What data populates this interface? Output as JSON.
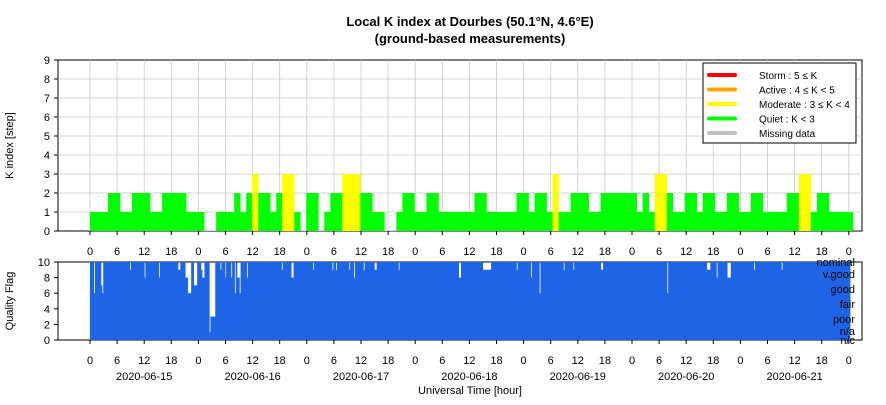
{
  "chart_data": {
    "type": "bar",
    "title": "Local K index at Dourbes (50.1°N, 4.6°E)",
    "subtitle": "(ground-based measurements)",
    "xlabel": "Universal Time [hour]",
    "colors": {
      "storm": "#ff0000",
      "active": "#ffa500",
      "moderate": "#ffff00",
      "quiet": "#00ff00",
      "missing": "#c0c0c0",
      "quality": "#1e64e6",
      "grid": "#c8c8c8"
    },
    "top_panel": {
      "ylabel": "K index [step]",
      "ylim": [
        0,
        9
      ],
      "yticks": [
        "0",
        "1",
        "2",
        "3",
        "4",
        "5",
        "6",
        "7",
        "8",
        "9"
      ],
      "k_values": [
        1,
        1,
        1,
        2,
        2,
        1,
        1,
        2,
        2,
        2,
        1,
        1,
        2,
        2,
        2,
        2,
        1,
        1,
        1,
        0,
        0,
        1,
        1,
        1,
        2,
        1,
        2,
        3,
        2,
        2,
        1,
        2,
        3,
        3,
        1,
        0,
        2,
        2,
        0,
        1,
        2,
        2,
        3,
        3,
        3,
        2,
        2,
        1,
        1,
        0,
        0,
        1,
        2,
        2,
        1,
        1,
        2,
        2,
        1,
        1,
        1,
        1,
        1,
        1,
        2,
        2,
        1,
        1,
        1,
        1,
        1,
        2,
        2,
        1,
        2,
        2,
        1,
        3,
        1,
        1,
        2,
        2,
        2,
        1,
        1,
        2,
        2,
        2,
        2,
        2,
        2,
        1,
        2,
        1,
        3,
        3,
        2,
        1,
        1,
        2,
        2,
        1,
        2,
        2,
        1,
        1,
        2,
        2,
        1,
        1,
        2,
        2,
        1,
        1,
        1,
        1,
        2,
        2,
        3,
        3,
        1,
        2,
        2,
        1,
        1,
        1,
        1
      ],
      "legend": [
        {
          "label": "Storm : 5 ≤ K",
          "color": "#ff0000"
        },
        {
          "label": "Active : 4 ≤ K < 5",
          "color": "#ffa500"
        },
        {
          "label": "Moderate : 3 ≤ K < 4",
          "color": "#ffff00"
        },
        {
          "label": "Quiet : K < 3",
          "color": "#00ff00"
        },
        {
          "label": "Missing data",
          "color": "#c0c0c0"
        }
      ],
      "legend_position": "top-right"
    },
    "bottom_panel": {
      "ylabel": "Quality Flag",
      "ylim": [
        0,
        10
      ],
      "yticks": [
        "0",
        "2",
        "4",
        "6",
        "8",
        "10"
      ],
      "quality_levels": [
        "nominal",
        "v.good",
        "good",
        "fair",
        "poor",
        "n/a",
        "n/c"
      ],
      "quality_series": [
        {
          "name": "2020-06-15",
          "values": [
            10,
            10,
            10,
            6,
            10,
            10,
            10,
            10,
            10,
            7,
            6,
            10,
            10,
            10,
            10,
            10,
            10,
            10,
            10,
            10,
            10,
            10,
            10,
            10,
            10,
            10,
            10,
            10,
            10,
            10,
            10,
            10,
            10,
            9,
            10,
            10,
            10,
            10,
            10,
            10,
            10,
            10,
            10,
            10,
            10,
            8,
            10,
            10,
            10,
            10,
            10,
            10,
            10,
            10,
            10,
            10,
            10,
            8,
            10,
            10,
            10,
            10,
            10,
            10,
            10,
            10,
            10,
            10,
            10,
            10,
            10,
            10,
            10,
            9,
            9,
            10,
            10,
            10,
            10,
            8,
            8,
            6,
            6,
            6,
            10,
            10,
            7,
            7,
            7,
            10,
            10,
            10,
            9
          ]
        },
        {
          "name": "2020-06-16",
          "values": [
            9,
            9,
            8,
            8,
            8,
            10,
            10,
            10,
            10,
            1,
            3,
            3,
            3,
            3,
            10,
            10,
            10,
            10,
            9,
            10,
            10,
            10,
            8,
            10,
            10,
            10,
            10,
            8,
            10,
            10,
            6,
            10,
            8,
            8,
            6,
            10,
            10,
            10,
            10,
            10,
            8,
            10,
            10,
            10,
            10,
            10,
            10,
            10,
            10,
            10,
            10,
            10,
            10,
            10,
            10,
            10,
            10,
            10,
            10,
            10,
            10,
            10,
            10,
            10,
            10,
            10,
            10,
            10,
            10,
            9,
            10,
            10,
            10,
            10,
            10,
            10,
            10,
            8,
            8,
            10,
            10,
            10,
            10,
            10,
            10,
            10,
            10,
            10,
            10,
            10
          ]
        },
        {
          "name": "2020-06-17",
          "values": [
            10,
            10,
            10,
            10,
            10,
            9,
            10,
            10,
            10,
            10,
            10,
            10,
            10,
            10,
            10,
            10,
            10,
            10,
            10,
            10,
            10,
            9,
            10,
            10,
            9,
            10,
            10,
            10,
            10,
            10,
            10,
            10,
            10,
            10,
            10,
            9,
            10,
            10,
            10,
            8,
            10,
            10,
            10,
            10,
            10,
            10,
            10,
            9,
            10,
            10,
            10,
            10,
            10,
            10,
            10,
            10,
            9,
            9,
            10,
            10,
            10,
            10,
            10,
            10,
            10,
            10,
            10,
            10,
            10,
            10,
            10,
            10,
            10,
            10,
            10,
            10,
            9,
            10,
            10,
            10,
            10,
            10,
            10,
            10,
            10,
            10,
            10,
            10,
            10,
            10
          ]
        },
        {
          "name": "2020-06-18",
          "values": [
            10,
            10,
            10,
            10,
            10,
            10,
            10,
            10,
            10,
            10,
            10,
            10,
            10,
            10,
            10,
            10,
            10,
            10,
            10,
            10,
            10,
            10,
            10,
            10,
            10,
            10,
            10,
            10,
            10,
            10,
            10,
            10,
            10,
            10,
            10,
            10,
            8,
            8,
            10,
            10,
            10,
            10,
            10,
            10,
            10,
            10,
            10,
            10,
            10,
            10,
            10,
            10,
            10,
            10,
            10,
            10,
            9,
            9,
            9,
            9,
            9,
            9,
            9,
            10,
            10,
            10,
            10,
            10,
            10,
            10,
            10,
            10,
            10,
            10,
            10,
            10,
            10,
            10,
            10,
            10,
            10,
            10,
            10,
            10,
            9,
            10,
            10,
            10,
            10,
            10,
            10
          ]
        },
        {
          "name": "2020-06-19",
          "values": [
            10,
            10,
            10,
            10,
            10,
            10,
            8,
            10,
            10,
            10,
            10,
            10,
            10,
            6,
            10,
            10,
            10,
            10,
            10,
            10,
            10,
            10,
            10,
            10,
            10,
            10,
            10,
            10,
            10,
            10,
            10,
            10,
            10,
            9,
            10,
            10,
            10,
            10,
            10,
            10,
            10,
            9,
            10,
            10,
            10,
            10,
            10,
            10,
            10,
            10,
            10,
            10,
            10,
            10,
            10,
            10,
            10,
            10,
            10,
            10,
            10,
            10,
            10,
            10,
            9,
            9,
            10,
            10,
            10,
            10,
            10,
            10,
            10,
            10,
            10,
            10,
            10,
            10,
            10,
            10,
            10,
            10,
            10,
            10,
            10,
            10,
            10,
            10,
            10,
            10,
            10
          ]
        },
        {
          "name": "2020-06-20",
          "values": [
            10,
            10,
            10,
            10,
            10,
            10,
            10,
            10,
            10,
            10,
            10,
            10,
            10,
            10,
            10,
            10,
            10,
            10,
            10,
            10,
            10,
            10,
            10,
            10,
            10,
            10,
            10,
            10,
            10,
            6,
            10,
            10,
            10,
            10,
            10,
            10,
            10,
            10,
            10,
            10,
            10,
            10,
            10,
            10,
            10,
            10,
            10,
            10,
            10,
            10,
            10,
            10,
            10,
            10,
            10,
            10,
            10,
            10,
            10,
            10,
            10,
            10,
            9,
            9,
            9,
            10,
            10,
            10,
            10,
            10,
            8,
            10,
            10,
            10,
            10,
            10,
            10,
            10,
            10,
            8,
            8,
            8,
            10,
            10,
            10,
            10,
            10,
            10,
            10,
            10,
            10
          ]
        },
        {
          "name": "2020-06-21",
          "values": [
            10,
            10,
            10,
            10,
            10,
            10,
            10,
            10,
            10,
            10,
            10,
            9,
            10,
            10,
            10,
            10,
            10,
            10,
            10,
            10,
            10,
            10,
            10,
            10,
            10,
            10,
            10,
            10,
            10,
            10,
            10,
            10,
            10,
            10,
            9,
            10,
            10,
            10,
            10,
            10,
            10,
            10,
            10,
            10,
            10,
            10,
            10,
            10,
            10,
            10,
            10,
            10,
            10,
            10,
            10,
            10,
            10,
            10,
            10,
            10,
            10,
            10,
            10,
            10,
            10,
            10,
            10,
            10,
            10,
            10,
            10,
            10,
            10,
            10,
            10,
            10,
            10,
            10,
            10,
            10,
            10,
            10,
            10,
            10,
            10,
            10,
            10,
            10,
            10,
            10,
            10
          ]
        }
      ]
    },
    "x_hour_ticks": [
      "0",
      "6",
      "12",
      "18",
      "0",
      "6",
      "12",
      "18",
      "0",
      "6",
      "12",
      "18",
      "0",
      "6",
      "12",
      "18",
      "0",
      "6",
      "12",
      "18",
      "0",
      "6",
      "12",
      "18",
      "0",
      "6",
      "12",
      "18",
      "0"
    ],
    "x_date_labels": [
      "2020-06-15",
      "2020-06-16",
      "2020-06-17",
      "2020-06-18",
      "2020-06-19",
      "2020-06-20",
      "2020-06-21"
    ]
  }
}
